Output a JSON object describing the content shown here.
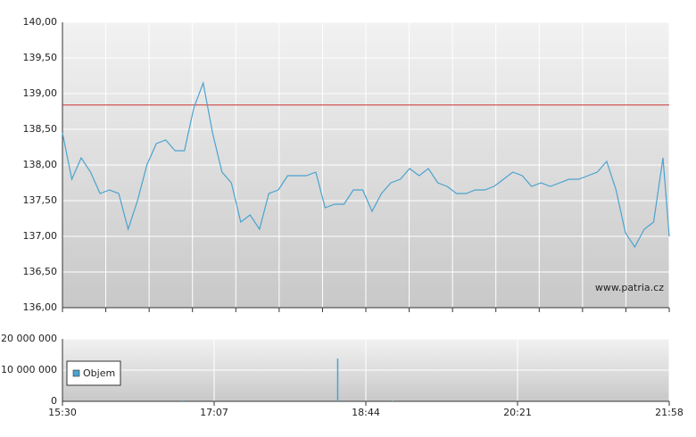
{
  "chart_data": [
    {
      "type": "line",
      "x": [
        930,
        936,
        942,
        948,
        954,
        960,
        966,
        972,
        978,
        984,
        990,
        996,
        1002,
        1008,
        1014,
        1020,
        1026,
        1032,
        1038,
        1044,
        1050,
        1056,
        1062,
        1068,
        1074,
        1080,
        1086,
        1092,
        1098,
        1104,
        1110,
        1116,
        1122,
        1128,
        1134,
        1140,
        1146,
        1152,
        1158,
        1164,
        1170,
        1176,
        1182,
        1188,
        1194,
        1200,
        1206,
        1212,
        1218,
        1224,
        1230,
        1236,
        1242,
        1248,
        1254,
        1260,
        1266,
        1272,
        1278,
        1284,
        1290,
        1296,
        1302,
        1308,
        1314,
        1318
      ],
      "values": [
        138.45,
        137.8,
        138.1,
        137.9,
        137.6,
        137.65,
        137.6,
        137.1,
        137.5,
        138.0,
        138.3,
        138.35,
        138.2,
        138.2,
        138.8,
        139.15,
        138.45,
        137.9,
        137.75,
        137.2,
        137.3,
        137.1,
        137.6,
        137.65,
        137.85,
        137.85,
        137.85,
        137.9,
        137.4,
        137.45,
        137.45,
        137.65,
        137.65,
        137.35,
        137.6,
        137.75,
        137.8,
        137.95,
        137.85,
        137.95,
        137.75,
        137.7,
        137.6,
        137.6,
        137.65,
        137.65,
        137.7,
        137.8,
        137.9,
        137.85,
        137.7,
        137.75,
        137.7,
        137.75,
        137.8,
        137.8,
        137.85,
        137.9,
        138.05,
        137.65,
        137.05,
        136.85,
        137.1,
        137.2,
        138.1,
        137.0
      ],
      "color": "#4ba3cf",
      "xlim": [
        930,
        1318
      ],
      "xticks": [
        930,
        957.71,
        985.43,
        1013.14,
        1040.86,
        1068.57,
        1096.29,
        1124,
        1151.71,
        1179.43,
        1207.14,
        1234.86,
        1262.57,
        1290.29,
        1318
      ],
      "ylim": [
        136,
        140
      ],
      "yticks": [
        {
          "value": 136,
          "label": "136,00"
        },
        {
          "value": 136.5,
          "label": "136,50"
        },
        {
          "value": 137,
          "label": "137,00"
        },
        {
          "value": 137.5,
          "label": "137,50"
        },
        {
          "value": 138,
          "label": "138,00"
        },
        {
          "value": 138.5,
          "label": "138,50"
        },
        {
          "value": 139,
          "label": "139,00"
        },
        {
          "value": 139.5,
          "label": "139,50"
        },
        {
          "value": 140,
          "label": "140,00"
        }
      ],
      "reference_line": {
        "value": 138.84,
        "color": "#cc3333"
      },
      "annotation": "www.patria.cz",
      "grid": true
    },
    {
      "type": "bar",
      "x": [
        1007,
        1106,
        1141
      ],
      "series": [
        {
          "name": "Objem",
          "color": "#4ba3cf",
          "values": [
            300000,
            13700000,
            200000
          ]
        }
      ],
      "xlim": [
        930,
        1318
      ],
      "xticks": [
        {
          "value": 930,
          "label": "15:30"
        },
        {
          "value": 1027,
          "label": "17:07"
        },
        {
          "value": 1124,
          "label": "18:44"
        },
        {
          "value": 1221,
          "label": "20:21"
        },
        {
          "value": 1318,
          "label": "21:58"
        }
      ],
      "ylim": [
        0,
        20000000
      ],
      "yticks": [
        0,
        {
          "value": 10000000,
          "label": "10 000 000"
        },
        {
          "value": 20000000,
          "label": "20 000 000"
        }
      ],
      "grid": true
    }
  ]
}
